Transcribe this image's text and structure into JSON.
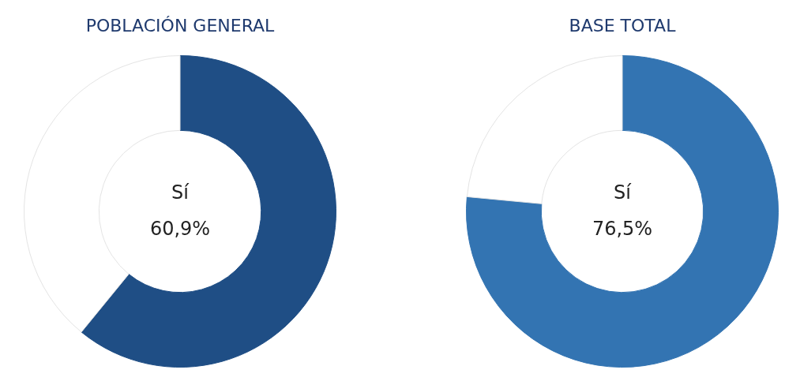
{
  "chart_data": [
    {
      "type": "donut",
      "title": "POBLACIÓN GENERAL",
      "categories": [
        "Sí",
        null
      ],
      "values": [
        60.9,
        39.1
      ],
      "colors": [
        "#1f4e85",
        "#ffffff"
      ],
      "value_labels": [
        "60,9%",
        null
      ]
    },
    {
      "type": "donut",
      "title": "BASE TOTAL",
      "categories": [
        "Sí",
        null
      ],
      "values": [
        76.5,
        23.5
      ],
      "colors": [
        "#3374b2",
        "#ffffff"
      ],
      "value_labels": [
        "76,5%",
        null
      ]
    }
  ]
}
